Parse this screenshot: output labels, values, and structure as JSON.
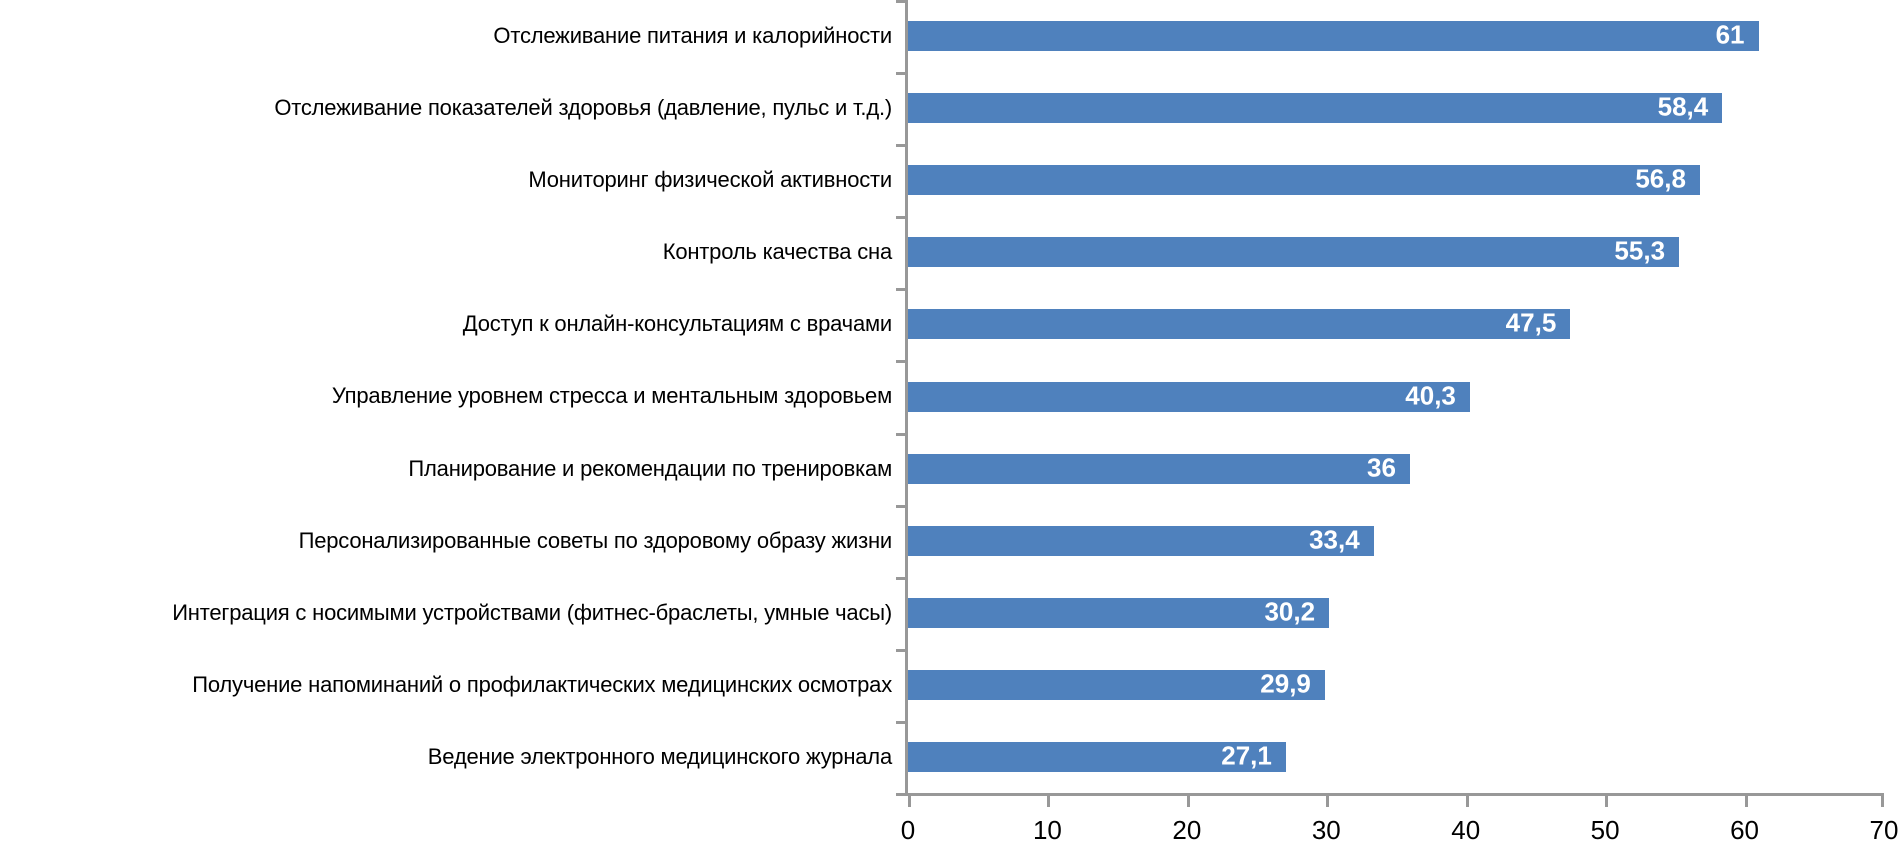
{
  "chart_data": {
    "type": "bar",
    "orientation": "horizontal",
    "title": "",
    "xlabel": "",
    "ylabel": "",
    "categories": [
      "Отслеживание питания и калорийности",
      "Отслеживание показателей здоровья (давление, пульс и т.д.)",
      "Мониторинг физической активности",
      "Контроль качества сна",
      "Доступ к онлайн-консультациям с врачами",
      "Управление уровнем стресса и ментальным здоровьем",
      "Планирование и рекомендации по тренировкам",
      "Персонализированные советы по здоровому образу жизни",
      "Интеграция с носимыми устройствами (фитнес-браслеты, умные часы)",
      "Получение напоминаний о профилактических медицинских осмотрах",
      "Ведение электронного медицинского журнала"
    ],
    "values": [
      61,
      58.4,
      56.8,
      55.3,
      47.5,
      40.3,
      36,
      33.4,
      30.2,
      29.9,
      27.1
    ],
    "value_labels": [
      "61",
      "58,4",
      "56,8",
      "55,3",
      "47,5",
      "40,3",
      "36",
      "33,4",
      "30,2",
      "29,9",
      "27,1"
    ],
    "xlim": [
      0,
      70
    ],
    "x_ticks": [
      0,
      10,
      20,
      30,
      40,
      50,
      60,
      70
    ],
    "x_tick_labels": [
      "0",
      "10",
      "20",
      "30",
      "40",
      "50",
      "60",
      "70"
    ],
    "grid": false,
    "legend": "none",
    "bar_color": "#4F81BD",
    "value_label_color": "#ffffff",
    "axis_color": "#989898",
    "text_color": "#000000"
  }
}
